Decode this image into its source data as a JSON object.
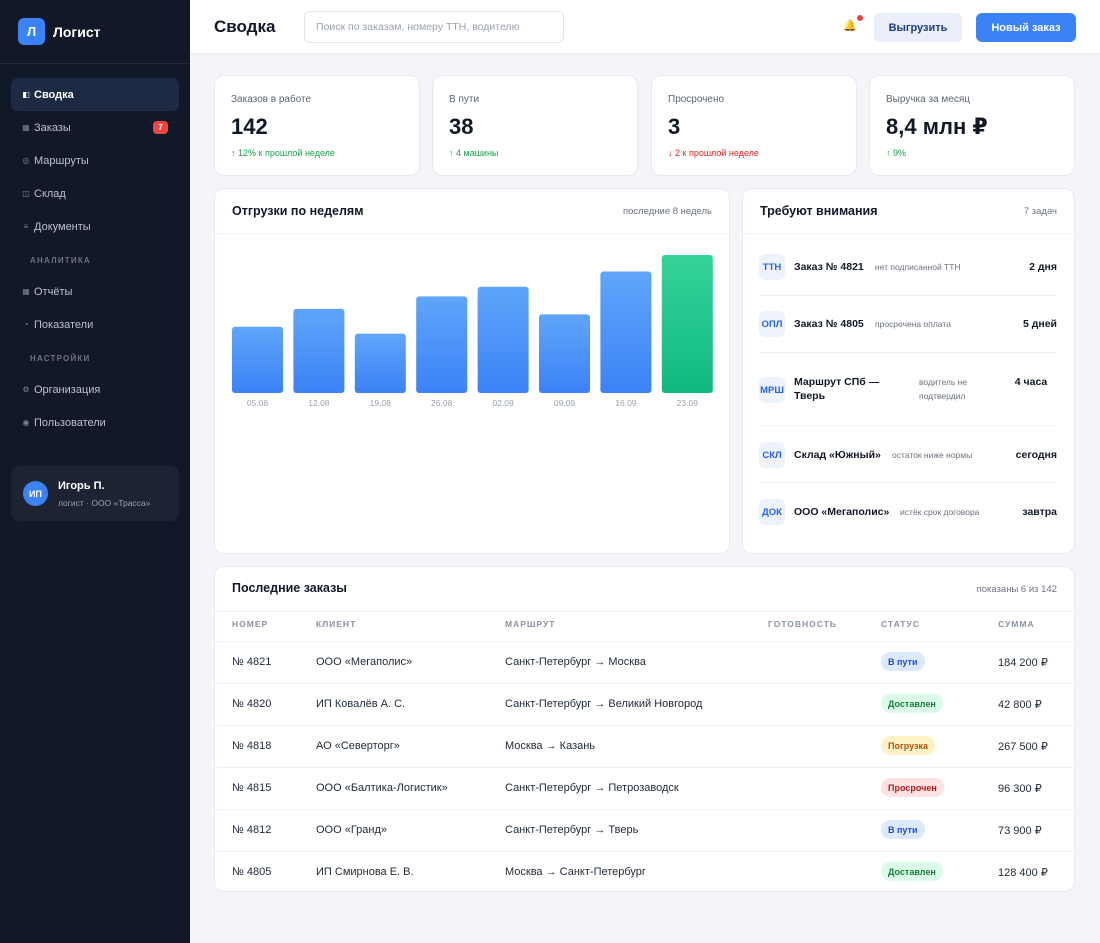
{
  "app": {
    "logo_letter": "Л",
    "name": "Логист"
  },
  "sidebar": {
    "items": [
      {
        "label": "Сводка",
        "icon": "◧",
        "icon_name": "dashboard-icon"
      },
      {
        "label": "Заказы",
        "icon": "▦",
        "icon_name": "orders-icon",
        "badge": "7"
      },
      {
        "label": "Маршруты",
        "icon": "◎",
        "icon_name": "routes-icon"
      },
      {
        "label": "Склад",
        "icon": "◫",
        "icon_name": "warehouse-icon"
      },
      {
        "label": "Документы",
        "icon": "≡",
        "icon_name": "documents-icon"
      }
    ],
    "section_analytics": "АНАЛИТИКА",
    "analytics_items": [
      {
        "label": "Отчёты",
        "icon": "▦",
        "icon_name": "reports-icon"
      },
      {
        "label": "Показатели",
        "icon": "◔",
        "icon_name": "metrics-icon"
      }
    ],
    "section_settings": "НАСТРОЙКИ",
    "settings_items": [
      {
        "label": "Организация",
        "icon": "⚙",
        "icon_name": "organization-icon"
      },
      {
        "label": "Пользователи",
        "icon": "◉",
        "icon_name": "users-icon"
      }
    ],
    "user": {
      "initials": "ИП",
      "name": "Игорь П.",
      "role": "логист · ООО «Трасса»"
    }
  },
  "header": {
    "title": "Сводка",
    "search_placeholder": "Поиск по заказам, номеру ТТН, водителю",
    "export_label": "Выгрузить",
    "new_order_label": "Новый заказ",
    "bell_icon": "🔔"
  },
  "kpis": [
    {
      "label": "Заказов в работе",
      "value": "142",
      "delta": "↑ 12% к прошлой неделе",
      "trend": "up"
    },
    {
      "label": "В пути",
      "value": "38",
      "delta": "↑ 4 машины",
      "trend": "up"
    },
    {
      "label": "Просрочено",
      "value": "3",
      "delta": "↓ 2 к прошлой неделе",
      "trend": "down"
    },
    {
      "label": "Выручка за месяц",
      "value": "8,4 млн ₽",
      "delta": "↑ 9%",
      "trend": "up"
    }
  ],
  "shipments": {
    "title": "Отгрузки по неделям",
    "meta": "последние 8 недель"
  },
  "chart_data": {
    "type": "bar",
    "categories": [
      "05.08",
      "12.08",
      "19.08",
      "26.08",
      "02.09",
      "09.09",
      "16.09",
      "23.09"
    ],
    "values": [
      48,
      61,
      43,
      70,
      77,
      57,
      88,
      100
    ],
    "ylim": [
      0,
      100
    ],
    "grid": false,
    "colors": {
      "default": "#3b82f6",
      "highlight": "#10b981"
    },
    "highlight_index": 7
  },
  "attention": {
    "title": "Требуют внимания",
    "meta": "7 задач",
    "items": [
      {
        "tag": "ТТН",
        "title": "Заказ № 4821",
        "desc": "нет подписанной ТТН",
        "due": "2 дня"
      },
      {
        "tag": "ОПЛ",
        "title": "Заказ № 4805",
        "desc": "просрочена оплата",
        "due": "5 дней"
      },
      {
        "tag": "МРШ",
        "title": "Маршрут СПб — Тверь",
        "desc": "водитель не подтвердил",
        "due": "4 часа"
      },
      {
        "tag": "СКЛ",
        "title": "Склад «Южный»",
        "desc": "остаток ниже нормы",
        "due": "сегодня"
      },
      {
        "tag": "ДОК",
        "title": "ООО «Мегаполис»",
        "desc": "истёк срок договора",
        "due": "завтра"
      }
    ]
  },
  "orders": {
    "title": "Последние заказы",
    "meta": "показаны 6 из 142",
    "columns": [
      "НОМЕР",
      "КЛИЕНТ",
      "МАРШРУТ",
      "ГОТОВНОСТЬ",
      "СТАТУС",
      "СУММА"
    ],
    "rows": [
      {
        "number": "№ 4821",
        "client": "ООО «Мегаполис»",
        "route": "Санкт-Петербург → Москва",
        "status": "В пути",
        "status_color": "blue",
        "sum": "184 200 ₽"
      },
      {
        "number": "№ 4820",
        "client": "ИП Ковалёв А. С.",
        "route": "Санкт-Петербург → Великий Новгород",
        "status": "Доставлен",
        "status_color": "green",
        "sum": "42 800 ₽"
      },
      {
        "number": "№ 4818",
        "client": "АО «Северторг»",
        "route": "Москва → Казань",
        "status": "Погрузка",
        "status_color": "yellow",
        "sum": "267 500 ₽"
      },
      {
        "number": "№ 4815",
        "client": "ООО «Балтика-Логистик»",
        "route": "Санкт-Петербург → Петрозаводск",
        "status": "Просрочен",
        "status_color": "red",
        "sum": "96 300 ₽"
      },
      {
        "number": "№ 4812",
        "client": "ООО «Гранд»",
        "route": "Санкт-Петербург → Тверь",
        "status": "В пути",
        "status_color": "blue",
        "sum": "73 900 ₽"
      },
      {
        "number": "№ 4805",
        "client": "ИП Смирнова Е. В.",
        "route": "Москва → Санкт-Петербург",
        "status": "Доставлен",
        "status_color": "green",
        "sum": "128 400 ₽"
      }
    ]
  }
}
